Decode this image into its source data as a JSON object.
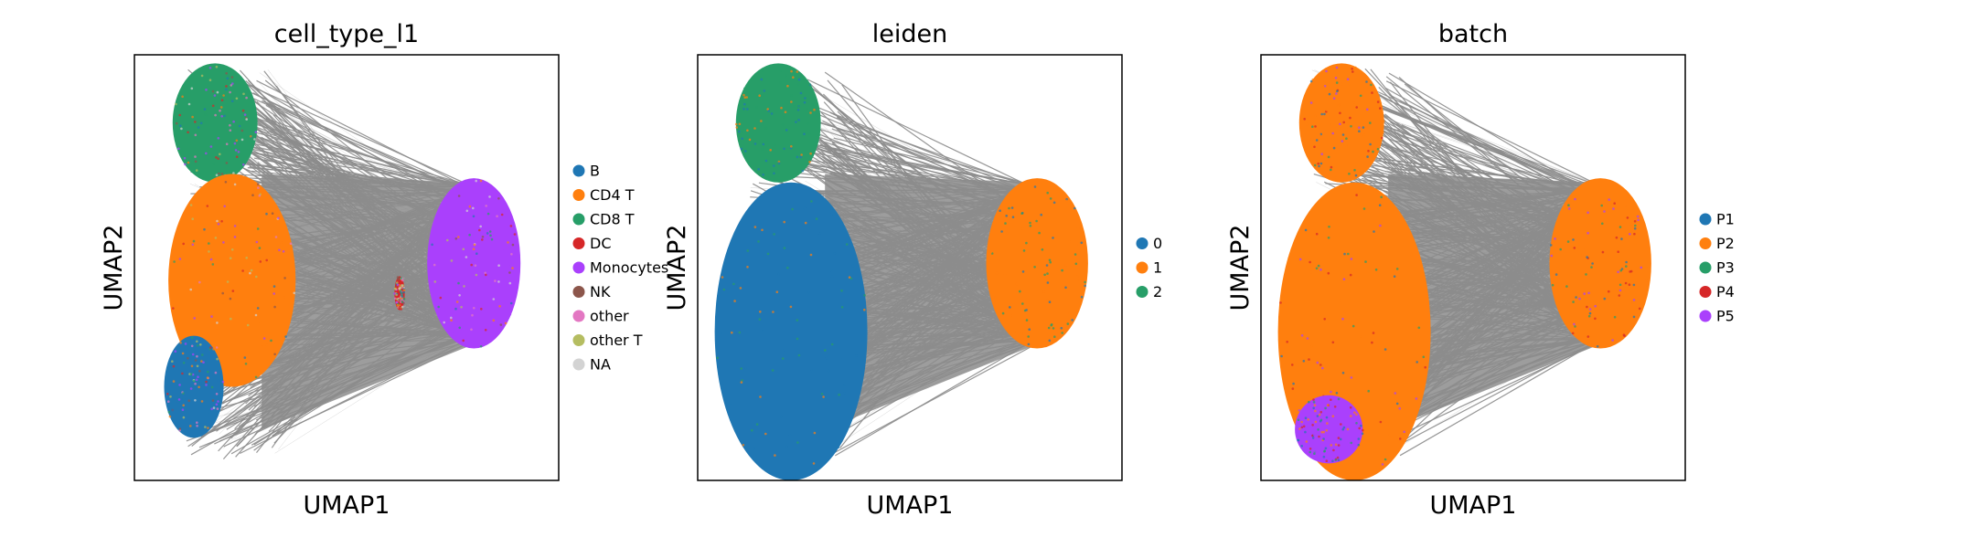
{
  "chart_data": [
    {
      "type": "scatter",
      "title": "cell_type_l1",
      "xlabel": "UMAP1",
      "ylabel": "UMAP2",
      "grid": false,
      "legend_position": "right",
      "legend": [
        {
          "label": "B",
          "color": "#1f77b4"
        },
        {
          "label": "CD4 T",
          "color": "#ff7f0e"
        },
        {
          "label": "CD8 T",
          "color": "#279e68"
        },
        {
          "label": "DC",
          "color": "#d62728"
        },
        {
          "label": "Monocytes",
          "color": "#aa40fc"
        },
        {
          "label": "NK",
          "color": "#8c564b"
        },
        {
          "label": "other",
          "color": "#e377c2"
        },
        {
          "label": "other T",
          "color": "#b5bd61"
        },
        {
          "label": "NA",
          "color": "#d3d3d3"
        }
      ],
      "clusters": [
        {
          "name": "CD8 T",
          "cx": 0.19,
          "cy": 0.84,
          "rx": 0.1,
          "ry": 0.14
        },
        {
          "name": "CD4 T",
          "cx": 0.23,
          "cy": 0.47,
          "rx": 0.15,
          "ry": 0.25
        },
        {
          "name": "B",
          "cx": 0.14,
          "cy": 0.22,
          "rx": 0.07,
          "ry": 0.12
        },
        {
          "name": "Monocytes",
          "cx": 0.8,
          "cy": 0.51,
          "rx": 0.11,
          "ry": 0.2
        },
        {
          "name": "DC",
          "cx": 0.625,
          "cy": 0.44,
          "rx": 0.012,
          "ry": 0.04
        }
      ]
    },
    {
      "type": "scatter",
      "title": "leiden",
      "xlabel": "UMAP1",
      "ylabel": "UMAP2",
      "grid": false,
      "legend_position": "right",
      "legend": [
        {
          "label": "0",
          "color": "#1f77b4"
        },
        {
          "label": "1",
          "color": "#ff7f0e"
        },
        {
          "label": "2",
          "color": "#279e68"
        }
      ],
      "clusters": [
        {
          "name": "2",
          "cx": 0.19,
          "cy": 0.84,
          "rx": 0.1,
          "ry": 0.14
        },
        {
          "name": "0",
          "cx": 0.22,
          "cy": 0.35,
          "rx": 0.18,
          "ry": 0.35
        },
        {
          "name": "1",
          "cx": 0.8,
          "cy": 0.51,
          "rx": 0.12,
          "ry": 0.2
        }
      ]
    },
    {
      "type": "scatter",
      "title": "batch",
      "xlabel": "UMAP1",
      "ylabel": "UMAP2",
      "grid": false,
      "legend_position": "right",
      "legend": [
        {
          "label": "P1",
          "color": "#1f77b4"
        },
        {
          "label": "P2",
          "color": "#ff7f0e"
        },
        {
          "label": "P3",
          "color": "#279e68"
        },
        {
          "label": "P4",
          "color": "#d62728"
        },
        {
          "label": "P5",
          "color": "#aa40fc"
        }
      ],
      "clusters": [
        {
          "name": "P2",
          "cx": 0.19,
          "cy": 0.84,
          "rx": 0.1,
          "ry": 0.14
        },
        {
          "name": "P2",
          "cx": 0.22,
          "cy": 0.35,
          "rx": 0.18,
          "ry": 0.35
        },
        {
          "name": "P2",
          "cx": 0.8,
          "cy": 0.51,
          "rx": 0.12,
          "ry": 0.2
        },
        {
          "name": "P5",
          "cx": 0.16,
          "cy": 0.12,
          "rx": 0.08,
          "ry": 0.08
        }
      ]
    }
  ],
  "colors": {
    "edges": "#8c8c8c",
    "background": "#ffffff"
  }
}
